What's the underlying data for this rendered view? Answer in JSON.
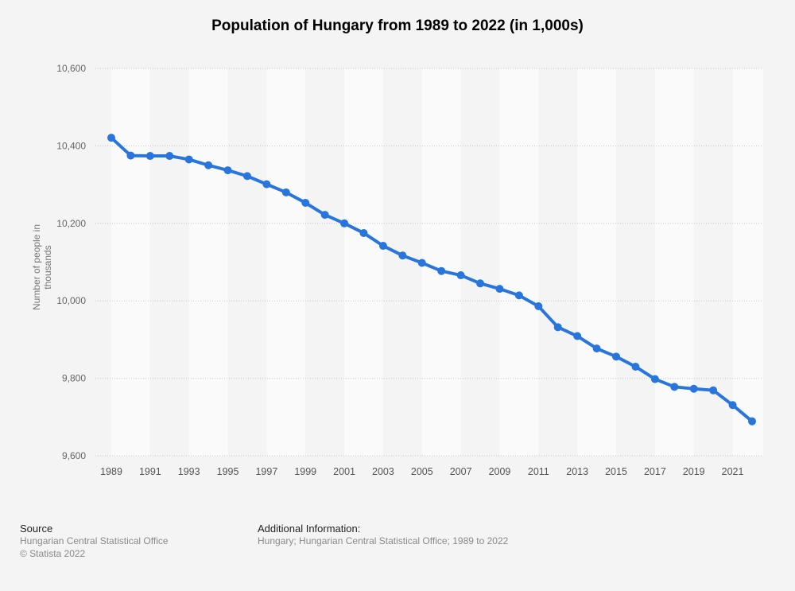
{
  "chart_data": {
    "type": "line",
    "title": "Population of Hungary from 1989 to 2022 (in 1,000s)",
    "xlabel": "",
    "ylabel": "Number of people in thousands",
    "ylim": [
      9600,
      10600
    ],
    "yticks": [
      9600,
      9800,
      10000,
      10200,
      10400,
      10600
    ],
    "ytick_labels": [
      "9,600",
      "9,800",
      "10,000",
      "10,200",
      "10,400",
      "10,600"
    ],
    "xtick_labels": [
      "1989",
      "1991",
      "1993",
      "1995",
      "1997",
      "1999",
      "2001",
      "2003",
      "2005",
      "2007",
      "2009",
      "2011",
      "2013",
      "2015",
      "2017",
      "2019",
      "2021"
    ],
    "grid": true,
    "legend": "none",
    "series": [
      {
        "name": "Population",
        "color": "#2876dd",
        "x": [
          1989,
          1990,
          1991,
          1992,
          1993,
          1994,
          1995,
          1996,
          1997,
          1998,
          1999,
          2000,
          2001,
          2002,
          2003,
          2004,
          2005,
          2006,
          2007,
          2008,
          2009,
          2010,
          2011,
          2012,
          2013,
          2014,
          2015,
          2016,
          2017,
          2018,
          2019,
          2020,
          2021,
          2022
        ],
        "values": [
          10421,
          10375,
          10374,
          10374,
          10365,
          10350,
          10337,
          10322,
          10301,
          10280,
          10253,
          10222,
          10200,
          10175,
          10142,
          10117,
          10098,
          10077,
          10066,
          10045,
          10031,
          10014,
          9986,
          9932,
          9909,
          9877,
          9856,
          9830,
          9798,
          9778,
          9773,
          9769,
          9731,
          9689
        ]
      }
    ]
  },
  "footer": {
    "source_heading": "Source",
    "source_text": "Hungarian Central Statistical Office",
    "copyright": "© Statista 2022",
    "additional_heading": "Additional Information:",
    "additional_text": "Hungary; Hungarian Central Statistical Office; 1989 to 2022"
  }
}
